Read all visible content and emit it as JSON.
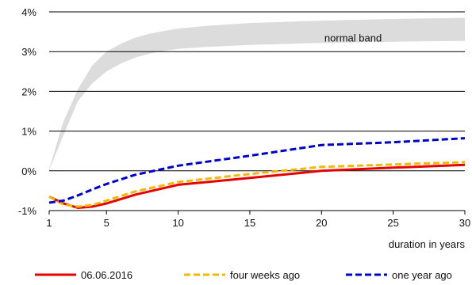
{
  "chart_data": {
    "type": "line",
    "xlabel": "duration in years",
    "ylabel": "",
    "xlim": [
      1,
      30
    ],
    "ylim": [
      -1,
      4
    ],
    "x_ticks": [
      1,
      5,
      10,
      15,
      20,
      25,
      30
    ],
    "y_ticks": [
      -1,
      0,
      1,
      2,
      3,
      4
    ],
    "y_tick_labels": [
      "-1%",
      "0%",
      "1%",
      "2%",
      "3%",
      "4%"
    ],
    "grid": "horizontal",
    "legend": "bottom",
    "band": {
      "label": "normal band",
      "x": [
        1,
        2,
        3,
        4,
        5,
        6,
        7,
        8,
        9,
        10,
        12,
        15,
        20,
        25,
        30
      ],
      "lower": [
        0.02,
        0.9,
        1.75,
        2.2,
        2.5,
        2.7,
        2.85,
        2.95,
        3.02,
        3.07,
        3.12,
        3.17,
        3.22,
        3.25,
        3.27
      ],
      "upper": [
        0.05,
        1.25,
        2.05,
        2.65,
        3.0,
        3.2,
        3.35,
        3.45,
        3.52,
        3.58,
        3.65,
        3.72,
        3.78,
        3.82,
        3.85
      ],
      "color": "#dcdcdc"
    },
    "series": [
      {
        "name": "06.06.2016",
        "color": "#e60000",
        "dash": false,
        "x": [
          1,
          2,
          3,
          4,
          5,
          7,
          10,
          15,
          20,
          25,
          30
        ],
        "y": [
          -0.65,
          -0.82,
          -0.93,
          -0.9,
          -0.82,
          -0.6,
          -0.35,
          -0.18,
          0.0,
          0.08,
          0.15
        ]
      },
      {
        "name": "four weeks ago",
        "color": "#f5b800",
        "dash": true,
        "x": [
          1,
          2,
          3,
          4,
          5,
          7,
          10,
          15,
          20,
          25,
          30
        ],
        "y": [
          -0.65,
          -0.85,
          -0.9,
          -0.86,
          -0.75,
          -0.52,
          -0.28,
          -0.08,
          0.1,
          0.16,
          0.22
        ]
      },
      {
        "name": "one year ago",
        "color": "#0000cc",
        "dash": true,
        "x": [
          1,
          2,
          3,
          4,
          5,
          7,
          10,
          15,
          20,
          25,
          30
        ],
        "y": [
          -0.8,
          -0.75,
          -0.62,
          -0.47,
          -0.33,
          -0.1,
          0.13,
          0.38,
          0.65,
          0.72,
          0.82
        ]
      }
    ]
  }
}
